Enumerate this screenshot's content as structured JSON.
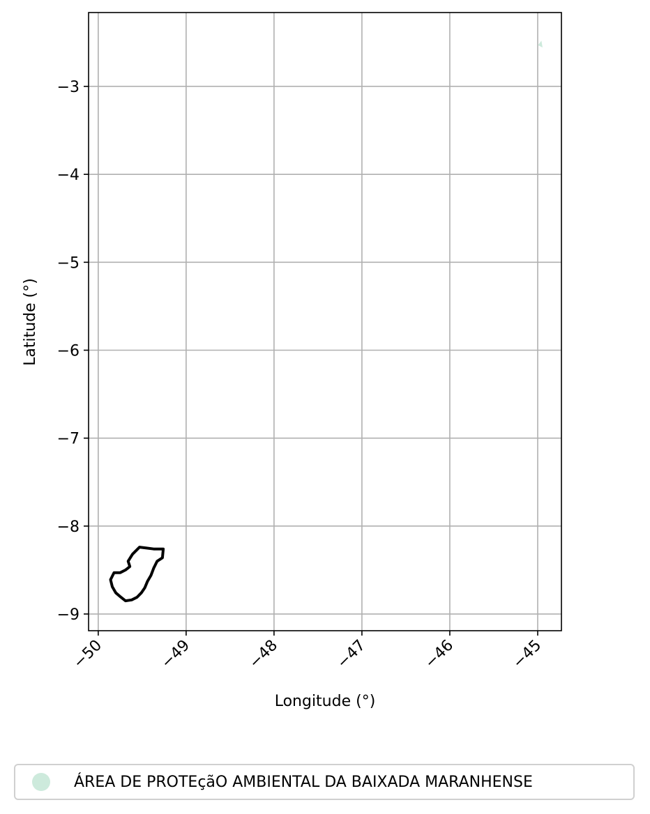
{
  "chart_data": {
    "type": "map",
    "xlabel": "Longitude (°)",
    "ylabel": "Latitude (°)",
    "xlim": [
      -50.11,
      -44.73
    ],
    "ylim": [
      -9.19,
      -2.16
    ],
    "x_ticks": [
      -50,
      -49,
      -48,
      -47,
      -46,
      -45
    ],
    "y_ticks": [
      -9,
      -8,
      -7,
      -6,
      -5,
      -4,
      -3
    ],
    "x_tick_labels": [
      "−50",
      "−49",
      "−48",
      "−47",
      "−46",
      "−45"
    ],
    "y_tick_labels": [
      "−9",
      "−8",
      "−7",
      "−6",
      "−5",
      "−4",
      "−3"
    ],
    "grid": true,
    "legend": {
      "placement": "bottom-center",
      "entries": [
        {
          "label": "ÁREA DE PROTEçãO AMBIENTAL DA BAIXADA MARANHENSE",
          "color": "#cdeadc"
        }
      ]
    },
    "shapes": [
      {
        "kind": "outline",
        "color": "#000000",
        "points": [
          [
            -49.53,
            -8.24
          ],
          [
            -49.45,
            -8.25
          ],
          [
            -49.37,
            -8.26
          ],
          [
            -49.26,
            -8.26
          ],
          [
            -49.27,
            -8.36
          ],
          [
            -49.33,
            -8.4
          ],
          [
            -49.37,
            -8.48
          ],
          [
            -49.4,
            -8.56
          ],
          [
            -49.44,
            -8.63
          ],
          [
            -49.47,
            -8.7
          ],
          [
            -49.51,
            -8.76
          ],
          [
            -49.56,
            -8.81
          ],
          [
            -49.62,
            -8.84
          ],
          [
            -49.69,
            -8.85
          ],
          [
            -49.74,
            -8.81
          ],
          [
            -49.8,
            -8.76
          ],
          [
            -49.84,
            -8.69
          ],
          [
            -49.86,
            -8.61
          ],
          [
            -49.82,
            -8.53
          ],
          [
            -49.75,
            -8.53
          ],
          [
            -49.69,
            -8.5
          ],
          [
            -49.64,
            -8.46
          ],
          [
            -49.66,
            -8.4
          ],
          [
            -49.61,
            -8.32
          ],
          [
            -49.53,
            -8.24
          ]
        ]
      },
      {
        "kind": "filled",
        "color": "#cdeadc",
        "points": [
          [
            -44.99,
            -2.53
          ],
          [
            -44.96,
            -2.49
          ],
          [
            -44.95,
            -2.55
          ],
          [
            -44.99,
            -2.53
          ]
        ]
      }
    ]
  }
}
